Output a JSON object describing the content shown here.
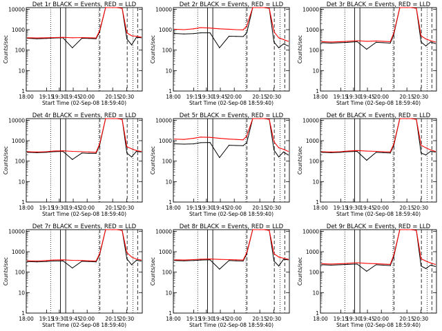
{
  "figure": {
    "subtitle": "Start Time (02-Sep-08 18:59:40)",
    "ylabel": "Counts/sec",
    "xtick_labels": [
      "18:00",
      "19:15",
      "19:30",
      "19:45",
      "20:00",
      "20:15",
      "20:30"
    ],
    "ytick_labels": [
      "1",
      "10",
      "100",
      "1000",
      "10000"
    ],
    "colors": {
      "events": "#000000",
      "lld": "#ff0000",
      "axes": "#000000",
      "background": "#ffffff"
    }
  },
  "chart_data": [
    {
      "type": "line",
      "title": "Det 1r BLACK = Events, RED = LLD",
      "xlabel": "Start Time (02-Sep-08 18:59:40)",
      "ylabel": "Counts/sec",
      "yscale": "log",
      "ylim": [
        1,
        12000
      ],
      "x": [
        "19:00",
        "19:08",
        "19:16",
        "19:22",
        "19:30",
        "19:38",
        "19:46",
        "19:52",
        "19:58",
        "20:01",
        "20:06",
        "20:12",
        "20:16",
        "20:20",
        "20:24",
        "20:28",
        "20:32",
        "20:36"
      ],
      "series": [
        {
          "name": "BLACK = Events",
          "color": "#000000",
          "values": [
            380,
            360,
            370,
            390,
            400,
            130,
            380,
            370,
            360,
            800,
            12000,
            12000,
            12000,
            11000,
            350,
            180,
            420,
            400
          ]
        },
        {
          "name": "RED = LLD",
          "color": "#ff0000",
          "values": [
            400,
            390,
            400,
            410,
            420,
            400,
            410,
            400,
            390,
            900,
            12000,
            12000,
            12000,
            11000,
            700,
            500,
            480,
            430
          ]
        }
      ]
    },
    {
      "type": "line",
      "title": "Det 2r BLACK = Events, RED = LLD",
      "xlabel": "Start Time (02-Sep-08 18:59:40)",
      "ylabel": "Counts/sec",
      "yscale": "log",
      "ylim": [
        1,
        12000
      ],
      "x": [
        "19:00",
        "19:08",
        "19:16",
        "19:22",
        "19:30",
        "19:38",
        "19:46",
        "19:52",
        "19:58",
        "20:01",
        "20:06",
        "20:12",
        "20:16",
        "20:20",
        "20:24",
        "20:28",
        "20:32",
        "20:36"
      ],
      "series": [
        {
          "name": "BLACK = Events",
          "color": "#000000",
          "values": [
            650,
            620,
            640,
            700,
            700,
            130,
            480,
            470,
            460,
            700,
            12000,
            12000,
            12000,
            11000,
            250,
            130,
            200,
            160
          ]
        },
        {
          "name": "RED = LLD",
          "color": "#ff0000",
          "values": [
            1050,
            1000,
            1100,
            1250,
            1200,
            1100,
            1050,
            1000,
            980,
            1500,
            12000,
            12000,
            12000,
            11000,
            800,
            400,
            330,
            270
          ]
        }
      ]
    },
    {
      "type": "line",
      "title": "Det 3r BLACK = Events, RED = LLD",
      "xlabel": "Start Time (02-Sep-08 18:59:40)",
      "ylabel": "Counts/sec",
      "yscale": "log",
      "ylim": [
        1,
        12000
      ],
      "x": [
        "19:00",
        "19:08",
        "19:16",
        "19:22",
        "19:30",
        "19:38",
        "19:46",
        "19:52",
        "19:58",
        "20:01",
        "20:06",
        "20:12",
        "20:16",
        "20:20",
        "20:24",
        "20:28",
        "20:32",
        "20:36"
      ],
      "series": [
        {
          "name": "BLACK = Events",
          "color": "#000000",
          "values": [
            230,
            220,
            230,
            240,
            260,
            110,
            240,
            230,
            220,
            600,
            12000,
            12000,
            12000,
            11000,
            250,
            160,
            250,
            210
          ]
        },
        {
          "name": "RED = LLD",
          "color": "#ff0000",
          "values": [
            260,
            250,
            260,
            270,
            290,
            270,
            280,
            270,
            260,
            700,
            12000,
            12000,
            12000,
            11000,
            500,
            350,
            290,
            250
          ]
        }
      ]
    },
    {
      "type": "line",
      "title": "Det 4r BLACK = Events, RED = LLD",
      "xlabel": "Start Time (02-Sep-08 18:59:40)",
      "ylabel": "Counts/sec",
      "yscale": "log",
      "ylim": [
        1,
        12000
      ],
      "x": [
        "19:00",
        "19:08",
        "19:16",
        "19:22",
        "19:30",
        "19:38",
        "19:46",
        "19:52",
        "19:58",
        "20:01",
        "20:06",
        "20:12",
        "20:16",
        "20:20",
        "20:24",
        "20:28",
        "20:32",
        "20:36"
      ],
      "series": [
        {
          "name": "BLACK = Events",
          "color": "#000000",
          "values": [
            270,
            260,
            270,
            290,
            300,
            120,
            250,
            240,
            240,
            600,
            12000,
            12000,
            12000,
            11000,
            250,
            160,
            300,
            280
          ]
        },
        {
          "name": "RED = LLD",
          "color": "#ff0000",
          "values": [
            290,
            280,
            290,
            310,
            320,
            300,
            290,
            280,
            270,
            700,
            12000,
            12000,
            12000,
            11000,
            500,
            400,
            330,
            300
          ]
        }
      ]
    },
    {
      "type": "line",
      "title": "Det 5r BLACK = Events, RED = LLD",
      "xlabel": "Start Time (02-Sep-08 18:59:40)",
      "ylabel": "Counts/sec",
      "yscale": "log",
      "ylim": [
        1,
        12000
      ],
      "x": [
        "19:00",
        "19:08",
        "19:16",
        "19:22",
        "19:30",
        "19:38",
        "19:46",
        "19:52",
        "19:58",
        "20:01",
        "20:06",
        "20:12",
        "20:16",
        "20:20",
        "20:24",
        "20:28",
        "20:32",
        "20:36"
      ],
      "series": [
        {
          "name": "BLACK = Events",
          "color": "#000000",
          "values": [
            700,
            680,
            700,
            800,
            820,
            150,
            600,
            580,
            570,
            800,
            12000,
            12000,
            12000,
            11000,
            350,
            160,
            280,
            200
          ]
        },
        {
          "name": "RED = LLD",
          "color": "#ff0000",
          "values": [
            1200,
            1150,
            1300,
            1500,
            1450,
            1300,
            1200,
            1150,
            1100,
            1700,
            12000,
            12000,
            12000,
            11000,
            900,
            450,
            380,
            300
          ]
        }
      ]
    },
    {
      "type": "line",
      "title": "Det 6r BLACK = Events, RED = LLD",
      "xlabel": "Start Time (02-Sep-08 18:59:40)",
      "ylabel": "Counts/sec",
      "yscale": "log",
      "ylim": [
        1,
        12000
      ],
      "x": [
        "19:00",
        "19:08",
        "19:16",
        "19:22",
        "19:30",
        "19:38",
        "19:46",
        "19:52",
        "19:58",
        "20:01",
        "20:06",
        "20:12",
        "20:16",
        "20:20",
        "20:24",
        "20:28",
        "20:32",
        "20:36"
      ],
      "series": [
        {
          "name": "BLACK = Events",
          "color": "#000000",
          "values": [
            270,
            260,
            270,
            290,
            300,
            110,
            270,
            260,
            250,
            600,
            12000,
            12000,
            12000,
            11000,
            250,
            200,
            300,
            280
          ]
        },
        {
          "name": "RED = LLD",
          "color": "#ff0000",
          "values": [
            290,
            280,
            290,
            310,
            330,
            310,
            300,
            290,
            280,
            700,
            12000,
            12000,
            12000,
            11000,
            600,
            450,
            350,
            300
          ]
        }
      ]
    },
    {
      "type": "line",
      "title": "Det 7r BLACK = Events, RED = LLD",
      "xlabel": "Start Time (02-Sep-08 18:59:40)",
      "ylabel": "Counts/sec",
      "yscale": "log",
      "ylim": [
        1,
        12000
      ],
      "x": [
        "19:00",
        "19:08",
        "19:16",
        "19:22",
        "19:30",
        "19:38",
        "19:46",
        "19:52",
        "19:58",
        "20:01",
        "20:06",
        "20:12",
        "20:16",
        "20:20",
        "20:24",
        "20:28",
        "20:32",
        "20:36"
      ],
      "series": [
        {
          "name": "BLACK = Events",
          "color": "#000000",
          "values": [
            330,
            320,
            330,
            350,
            360,
            160,
            340,
            330,
            320,
            700,
            12000,
            12000,
            12000,
            11000,
            450,
            230,
            380,
            350
          ]
        },
        {
          "name": "RED = LLD",
          "color": "#ff0000",
          "values": [
            360,
            350,
            370,
            390,
            400,
            380,
            370,
            360,
            350,
            800,
            12000,
            12000,
            12000,
            11000,
            900,
            550,
            430,
            390
          ]
        }
      ]
    },
    {
      "type": "line",
      "title": "Det 8r BLACK = Events, RED = LLD",
      "xlabel": "Start Time (02-Sep-08 18:59:40)",
      "ylabel": "Counts/sec",
      "yscale": "log",
      "ylim": [
        1,
        12000
      ],
      "x": [
        "19:00",
        "19:08",
        "19:16",
        "19:22",
        "19:30",
        "19:38",
        "19:46",
        "19:52",
        "19:58",
        "20:01",
        "20:06",
        "20:12",
        "20:16",
        "20:20",
        "20:24",
        "20:28",
        "20:32",
        "20:36"
      ],
      "series": [
        {
          "name": "BLACK = Events",
          "color": "#000000",
          "values": [
            370,
            360,
            370,
            390,
            400,
            140,
            370,
            360,
            350,
            800,
            12000,
            12000,
            12000,
            11000,
            350,
            200,
            420,
            400
          ]
        },
        {
          "name": "RED = LLD",
          "color": "#ff0000",
          "values": [
            400,
            390,
            410,
            430,
            440,
            420,
            410,
            400,
            390,
            900,
            12000,
            12000,
            12000,
            11000,
            800,
            550,
            480,
            430
          ]
        }
      ]
    },
    {
      "type": "line",
      "title": "Det 9r BLACK = Events, RED = LLD",
      "xlabel": "Start Time (02-Sep-08 18:59:40)",
      "ylabel": "Counts/sec",
      "yscale": "log",
      "ylim": [
        1,
        12000
      ],
      "x": [
        "19:00",
        "19:08",
        "19:16",
        "19:22",
        "19:30",
        "19:38",
        "19:46",
        "19:52",
        "19:58",
        "20:01",
        "20:06",
        "20:12",
        "20:16",
        "20:20",
        "20:24",
        "20:28",
        "20:32",
        "20:36"
      ],
      "series": [
        {
          "name": "BLACK = Events",
          "color": "#000000",
          "values": [
            230,
            220,
            230,
            240,
            250,
            110,
            230,
            220,
            210,
            600,
            12000,
            12000,
            12000,
            11000,
            200,
            150,
            220,
            190
          ]
        },
        {
          "name": "RED = LLD",
          "color": "#ff0000",
          "values": [
            260,
            250,
            260,
            270,
            290,
            270,
            260,
            250,
            240,
            700,
            12000,
            12000,
            12000,
            11000,
            450,
            350,
            280,
            240
          ]
        }
      ]
    }
  ]
}
